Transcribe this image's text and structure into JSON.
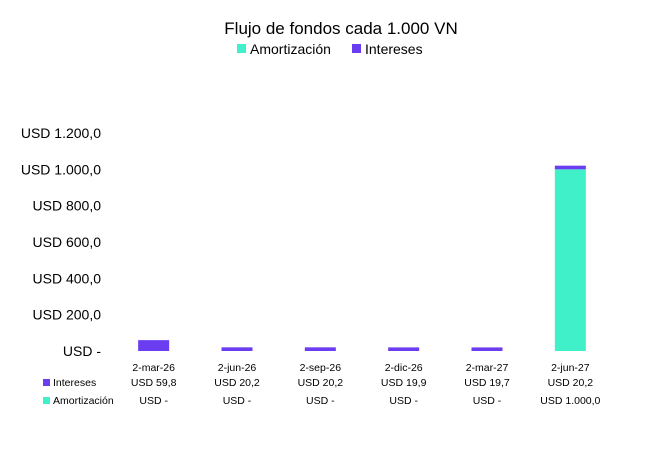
{
  "chart_data": {
    "type": "bar",
    "stacked": true,
    "title": "Flujo de fondos cada 1.000 VN",
    "categories": [
      "2-mar-26",
      "2-jun-26",
      "2-sep-26",
      "2-dic-26",
      "2-mar-27",
      "2-jun-27"
    ],
    "series": [
      {
        "name": "Amortización",
        "color": "#40F0C8",
        "values": [
          0,
          0,
          0,
          0,
          0,
          1000.0
        ],
        "labels": [
          "USD -",
          "USD -",
          "USD -",
          "USD -",
          "USD -",
          "USD 1.000,0"
        ]
      },
      {
        "name": "Intereses",
        "color": "#6A3DF0",
        "values": [
          59.8,
          20.2,
          20.2,
          19.9,
          19.7,
          20.2
        ],
        "labels": [
          "USD 59,8",
          "USD 20,2",
          "USD 20,2",
          "USD 19,9",
          "USD 19,7",
          "USD 20,2"
        ]
      }
    ],
    "legend": {
      "position": "top",
      "order": [
        "Amortización",
        "Intereses"
      ]
    },
    "y_ticks": [
      {
        "value": 0,
        "label": "USD -"
      },
      {
        "value": 200,
        "label": "USD 200,0"
      },
      {
        "value": 400,
        "label": "USD 400,0"
      },
      {
        "value": 600,
        "label": "USD 600,0"
      },
      {
        "value": 800,
        "label": "USD 800,0"
      },
      {
        "value": 1000,
        "label": "USD 1.000,0"
      },
      {
        "value": 1200,
        "label": "USD 1.200,0"
      }
    ],
    "ylim": [
      0,
      1200
    ],
    "grid": false,
    "data_table": {
      "row_order": [
        "Intereses",
        "Amortización"
      ]
    }
  }
}
